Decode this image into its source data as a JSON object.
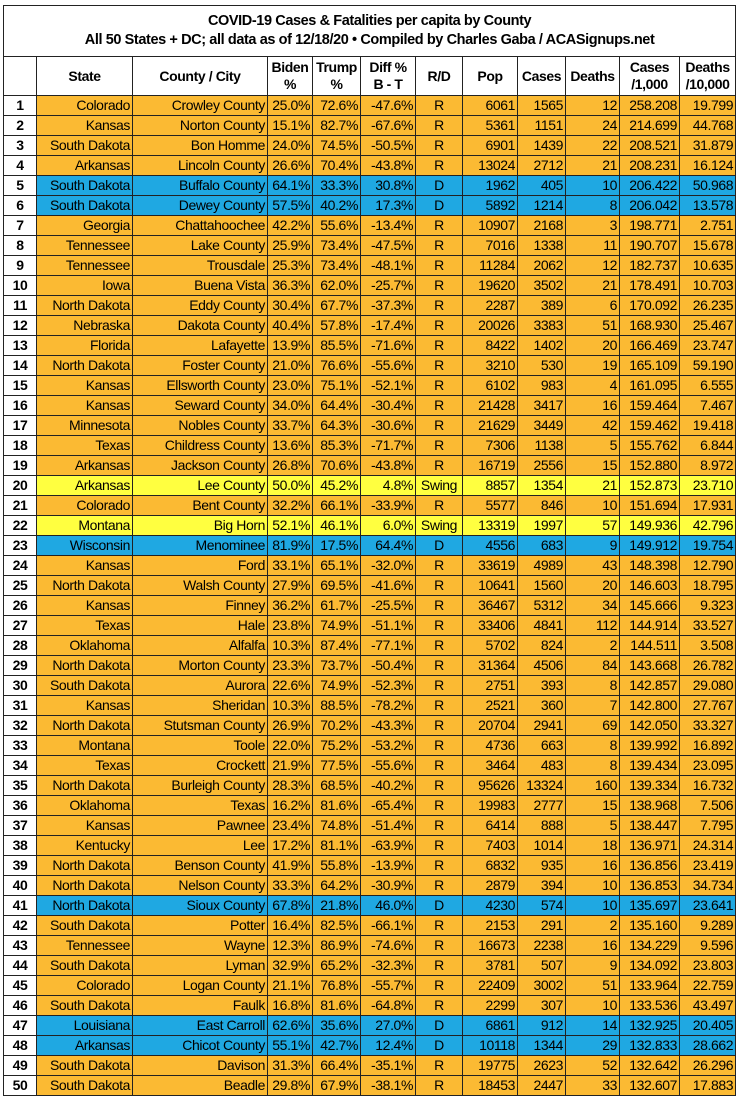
{
  "title": {
    "line1": "COVID-19 Cases & Fatalities per capita by County",
    "line2": "All 50 States + DC; all data as of 12/18/20  • Compiled by Charles Gaba / ACASignups.net"
  },
  "colors": {
    "R": "#fbba33",
    "D": "#1fa8e2",
    "Swing": "#ffff40"
  },
  "headers": [
    {
      "l1": "",
      "l2": ""
    },
    {
      "l1": "State",
      "l2": ""
    },
    {
      "l1": "County / City",
      "l2": ""
    },
    {
      "l1": "Biden",
      "l2": "%"
    },
    {
      "l1": "Trump",
      "l2": "%"
    },
    {
      "l1": "Diff %",
      "l2": "B - T"
    },
    {
      "l1": "R/D",
      "l2": ""
    },
    {
      "l1": "Pop",
      "l2": ""
    },
    {
      "l1": "Cases",
      "l2": ""
    },
    {
      "l1": "Deaths",
      "l2": ""
    },
    {
      "l1": "Cases",
      "l2": "/1,000"
    },
    {
      "l1": "Deaths",
      "l2": "/10,000"
    }
  ],
  "rows": [
    [
      "1",
      "Colorado",
      "Crowley County",
      "25.0%",
      "72.6%",
      "-47.6%",
      "R",
      "6061",
      "1565",
      "12",
      "258.208",
      "19.799"
    ],
    [
      "2",
      "Kansas",
      "Norton County",
      "15.1%",
      "82.7%",
      "-67.6%",
      "R",
      "5361",
      "1151",
      "24",
      "214.699",
      "44.768"
    ],
    [
      "3",
      "South Dakota",
      "Bon Homme",
      "24.0%",
      "74.5%",
      "-50.5%",
      "R",
      "6901",
      "1439",
      "22",
      "208.521",
      "31.879"
    ],
    [
      "4",
      "Arkansas",
      "Lincoln County",
      "26.6%",
      "70.4%",
      "-43.8%",
      "R",
      "13024",
      "2712",
      "21",
      "208.231",
      "16.124"
    ],
    [
      "5",
      "South Dakota",
      "Buffalo County",
      "64.1%",
      "33.3%",
      "30.8%",
      "D",
      "1962",
      "405",
      "10",
      "206.422",
      "50.968"
    ],
    [
      "6",
      "South Dakota",
      "Dewey County",
      "57.5%",
      "40.2%",
      "17.3%",
      "D",
      "5892",
      "1214",
      "8",
      "206.042",
      "13.578"
    ],
    [
      "7",
      "Georgia",
      "Chattahoochee",
      "42.2%",
      "55.6%",
      "-13.4%",
      "R",
      "10907",
      "2168",
      "3",
      "198.771",
      "2.751"
    ],
    [
      "8",
      "Tennessee",
      "Lake County",
      "25.9%",
      "73.4%",
      "-47.5%",
      "R",
      "7016",
      "1338",
      "11",
      "190.707",
      "15.678"
    ],
    [
      "9",
      "Tennessee",
      "Trousdale",
      "25.3%",
      "73.4%",
      "-48.1%",
      "R",
      "11284",
      "2062",
      "12",
      "182.737",
      "10.635"
    ],
    [
      "10",
      "Iowa",
      "Buena Vista",
      "36.3%",
      "62.0%",
      "-25.7%",
      "R",
      "19620",
      "3502",
      "21",
      "178.491",
      "10.703"
    ],
    [
      "11",
      "North Dakota",
      "Eddy County",
      "30.4%",
      "67.7%",
      "-37.3%",
      "R",
      "2287",
      "389",
      "6",
      "170.092",
      "26.235"
    ],
    [
      "12",
      "Nebraska",
      "Dakota County",
      "40.4%",
      "57.8%",
      "-17.4%",
      "R",
      "20026",
      "3383",
      "51",
      "168.930",
      "25.467"
    ],
    [
      "13",
      "Florida",
      "Lafayette",
      "13.9%",
      "85.5%",
      "-71.6%",
      "R",
      "8422",
      "1402",
      "20",
      "166.469",
      "23.747"
    ],
    [
      "14",
      "North Dakota",
      "Foster County",
      "21.0%",
      "76.6%",
      "-55.6%",
      "R",
      "3210",
      "530",
      "19",
      "165.109",
      "59.190"
    ],
    [
      "15",
      "Kansas",
      "Ellsworth County",
      "23.0%",
      "75.1%",
      "-52.1%",
      "R",
      "6102",
      "983",
      "4",
      "161.095",
      "6.555"
    ],
    [
      "16",
      "Kansas",
      "Seward County",
      "34.0%",
      "64.4%",
      "-30.4%",
      "R",
      "21428",
      "3417",
      "16",
      "159.464",
      "7.467"
    ],
    [
      "17",
      "Minnesota",
      "Nobles County",
      "33.7%",
      "64.3%",
      "-30.6%",
      "R",
      "21629",
      "3449",
      "42",
      "159.462",
      "19.418"
    ],
    [
      "18",
      "Texas",
      "Childress County",
      "13.6%",
      "85.3%",
      "-71.7%",
      "R",
      "7306",
      "1138",
      "5",
      "155.762",
      "6.844"
    ],
    [
      "19",
      "Arkansas",
      "Jackson County",
      "26.8%",
      "70.6%",
      "-43.8%",
      "R",
      "16719",
      "2556",
      "15",
      "152.880",
      "8.972"
    ],
    [
      "20",
      "Arkansas",
      "Lee County",
      "50.0%",
      "45.2%",
      "4.8%",
      "Swing",
      "8857",
      "1354",
      "21",
      "152.873",
      "23.710"
    ],
    [
      "21",
      "Colorado",
      "Bent County",
      "32.2%",
      "66.1%",
      "-33.9%",
      "R",
      "5577",
      "846",
      "10",
      "151.694",
      "17.931"
    ],
    [
      "22",
      "Montana",
      "Big Horn",
      "52.1%",
      "46.1%",
      "6.0%",
      "Swing",
      "13319",
      "1997",
      "57",
      "149.936",
      "42.796"
    ],
    [
      "23",
      "Wisconsin",
      "Menominee",
      "81.9%",
      "17.5%",
      "64.4%",
      "D",
      "4556",
      "683",
      "9",
      "149.912",
      "19.754"
    ],
    [
      "24",
      "Kansas",
      "Ford",
      "33.1%",
      "65.1%",
      "-32.0%",
      "R",
      "33619",
      "4989",
      "43",
      "148.398",
      "12.790"
    ],
    [
      "25",
      "North Dakota",
      "Walsh County",
      "27.9%",
      "69.5%",
      "-41.6%",
      "R",
      "10641",
      "1560",
      "20",
      "146.603",
      "18.795"
    ],
    [
      "26",
      "Kansas",
      "Finney",
      "36.2%",
      "61.7%",
      "-25.5%",
      "R",
      "36467",
      "5312",
      "34",
      "145.666",
      "9.323"
    ],
    [
      "27",
      "Texas",
      "Hale",
      "23.8%",
      "74.9%",
      "-51.1%",
      "R",
      "33406",
      "4841",
      "112",
      "144.914",
      "33.527"
    ],
    [
      "28",
      "Oklahoma",
      "Alfalfa",
      "10.3%",
      "87.4%",
      "-77.1%",
      "R",
      "5702",
      "824",
      "2",
      "144.511",
      "3.508"
    ],
    [
      "29",
      "North Dakota",
      "Morton County",
      "23.3%",
      "73.7%",
      "-50.4%",
      "R",
      "31364",
      "4506",
      "84",
      "143.668",
      "26.782"
    ],
    [
      "30",
      "South Dakota",
      "Aurora",
      "22.6%",
      "74.9%",
      "-52.3%",
      "R",
      "2751",
      "393",
      "8",
      "142.857",
      "29.080"
    ],
    [
      "31",
      "Kansas",
      "Sheridan",
      "10.3%",
      "88.5%",
      "-78.2%",
      "R",
      "2521",
      "360",
      "7",
      "142.800",
      "27.767"
    ],
    [
      "32",
      "North Dakota",
      "Stutsman County",
      "26.9%",
      "70.2%",
      "-43.3%",
      "R",
      "20704",
      "2941",
      "69",
      "142.050",
      "33.327"
    ],
    [
      "33",
      "Montana",
      "Toole",
      "22.0%",
      "75.2%",
      "-53.2%",
      "R",
      "4736",
      "663",
      "8",
      "139.992",
      "16.892"
    ],
    [
      "34",
      "Texas",
      "Crockett",
      "21.9%",
      "77.5%",
      "-55.6%",
      "R",
      "3464",
      "483",
      "8",
      "139.434",
      "23.095"
    ],
    [
      "35",
      "North Dakota",
      "Burleigh County",
      "28.3%",
      "68.5%",
      "-40.2%",
      "R",
      "95626",
      "13324",
      "160",
      "139.334",
      "16.732"
    ],
    [
      "36",
      "Oklahoma",
      "Texas",
      "16.2%",
      "81.6%",
      "-65.4%",
      "R",
      "19983",
      "2777",
      "15",
      "138.968",
      "7.506"
    ],
    [
      "37",
      "Kansas",
      "Pawnee",
      "23.4%",
      "74.8%",
      "-51.4%",
      "R",
      "6414",
      "888",
      "5",
      "138.447",
      "7.795"
    ],
    [
      "38",
      "Kentucky",
      "Lee",
      "17.2%",
      "81.1%",
      "-63.9%",
      "R",
      "7403",
      "1014",
      "18",
      "136.971",
      "24.314"
    ],
    [
      "39",
      "North Dakota",
      "Benson County",
      "41.9%",
      "55.8%",
      "-13.9%",
      "R",
      "6832",
      "935",
      "16",
      "136.856",
      "23.419"
    ],
    [
      "40",
      "North Dakota",
      "Nelson County",
      "33.3%",
      "64.2%",
      "-30.9%",
      "R",
      "2879",
      "394",
      "10",
      "136.853",
      "34.734"
    ],
    [
      "41",
      "North Dakota",
      "Sioux County",
      "67.8%",
      "21.8%",
      "46.0%",
      "D",
      "4230",
      "574",
      "10",
      "135.697",
      "23.641"
    ],
    [
      "42",
      "South Dakota",
      "Potter",
      "16.4%",
      "82.5%",
      "-66.1%",
      "R",
      "2153",
      "291",
      "2",
      "135.160",
      "9.289"
    ],
    [
      "43",
      "Tennessee",
      "Wayne",
      "12.3%",
      "86.9%",
      "-74.6%",
      "R",
      "16673",
      "2238",
      "16",
      "134.229",
      "9.596"
    ],
    [
      "44",
      "South Dakota",
      "Lyman",
      "32.9%",
      "65.2%",
      "-32.3%",
      "R",
      "3781",
      "507",
      "9",
      "134.092",
      "23.803"
    ],
    [
      "45",
      "Colorado",
      "Logan County",
      "21.1%",
      "76.8%",
      "-55.7%",
      "R",
      "22409",
      "3002",
      "51",
      "133.964",
      "22.759"
    ],
    [
      "46",
      "South Dakota",
      "Faulk",
      "16.8%",
      "81.6%",
      "-64.8%",
      "R",
      "2299",
      "307",
      "10",
      "133.536",
      "43.497"
    ],
    [
      "47",
      "Louisiana",
      "East Carroll",
      "62.6%",
      "35.6%",
      "27.0%",
      "D",
      "6861",
      "912",
      "14",
      "132.925",
      "20.405"
    ],
    [
      "48",
      "Arkansas",
      "Chicot County",
      "55.1%",
      "42.7%",
      "12.4%",
      "D",
      "10118",
      "1344",
      "29",
      "132.833",
      "28.662"
    ],
    [
      "49",
      "South Dakota",
      "Davison",
      "31.3%",
      "66.4%",
      "-35.1%",
      "R",
      "19775",
      "2623",
      "52",
      "132.642",
      "26.296"
    ],
    [
      "50",
      "South Dakota",
      "Beadle",
      "29.8%",
      "67.9%",
      "-38.1%",
      "R",
      "18453",
      "2447",
      "33",
      "132.607",
      "17.883"
    ]
  ]
}
